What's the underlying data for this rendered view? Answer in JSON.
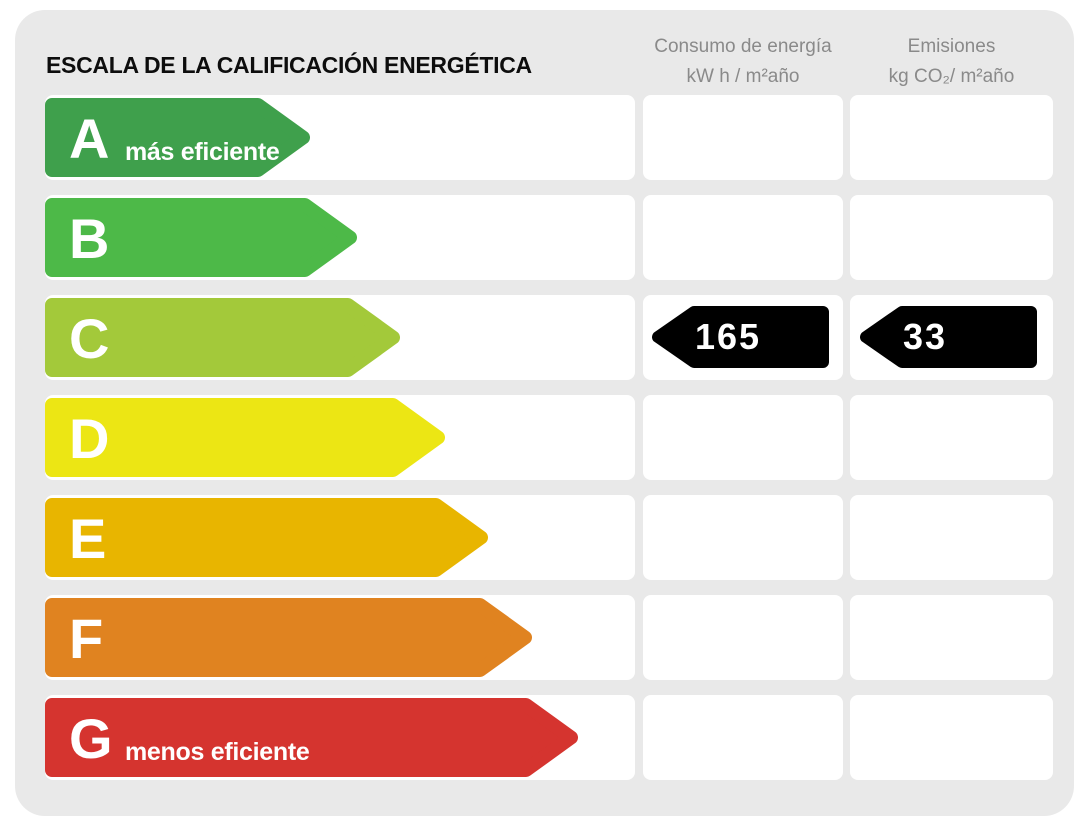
{
  "title": "ESCALA DE LA CALIFICACIÓN ENERGÉTICA",
  "columns": {
    "consumption": {
      "line1": "Consumo de energía",
      "line2": "kW h / m²año"
    },
    "emissions": {
      "line1": "Emisiones",
      "line2": "kg CO₂/ m²año"
    }
  },
  "ratings": [
    {
      "letter": "A",
      "label": "más eficiente",
      "color": "#3fa04c",
      "arrow_width": 265
    },
    {
      "letter": "B",
      "color": "#4db948",
      "arrow_width": 312
    },
    {
      "letter": "C",
      "color": "#a3c93a",
      "arrow_width": 355
    },
    {
      "letter": "D",
      "color": "#ece614",
      "arrow_width": 400
    },
    {
      "letter": "E",
      "color": "#e8b500",
      "arrow_width": 443
    },
    {
      "letter": "F",
      "color": "#e08320",
      "arrow_width": 487
    },
    {
      "letter": "G",
      "label": "menos eficiente",
      "color": "#d5342f",
      "arrow_width": 533
    }
  ],
  "result": {
    "rating": "C",
    "consumption_value": "165",
    "emissions_value": "33",
    "indicator_color": "#000000"
  },
  "chart_data": {
    "type": "bar",
    "title": "ESCALA DE LA CALIFICACIÓN ENERGÉTICA",
    "categories": [
      "A",
      "B",
      "C",
      "D",
      "E",
      "F",
      "G"
    ],
    "series": [
      {
        "name": "scale-arrow-relative-length-px",
        "values": [
          265,
          312,
          355,
          400,
          443,
          487,
          533
        ]
      }
    ],
    "bar_colors": [
      "#3fa04c",
      "#4db948",
      "#a3c93a",
      "#ece614",
      "#e8b500",
      "#e08320",
      "#d5342f"
    ],
    "assigned_rating": "C",
    "values": {
      "consumption_kWh_per_m2_year": 165,
      "emissions_kgCO2_per_m2_year": 33
    },
    "column_headers": [
      "Consumo de energía kW h / m²año",
      "Emisiones kg CO₂/ m²año"
    ],
    "annotations": [
      "A = más eficiente",
      "G = menos eficiente"
    ],
    "legend_position": "none",
    "grid": false
  }
}
